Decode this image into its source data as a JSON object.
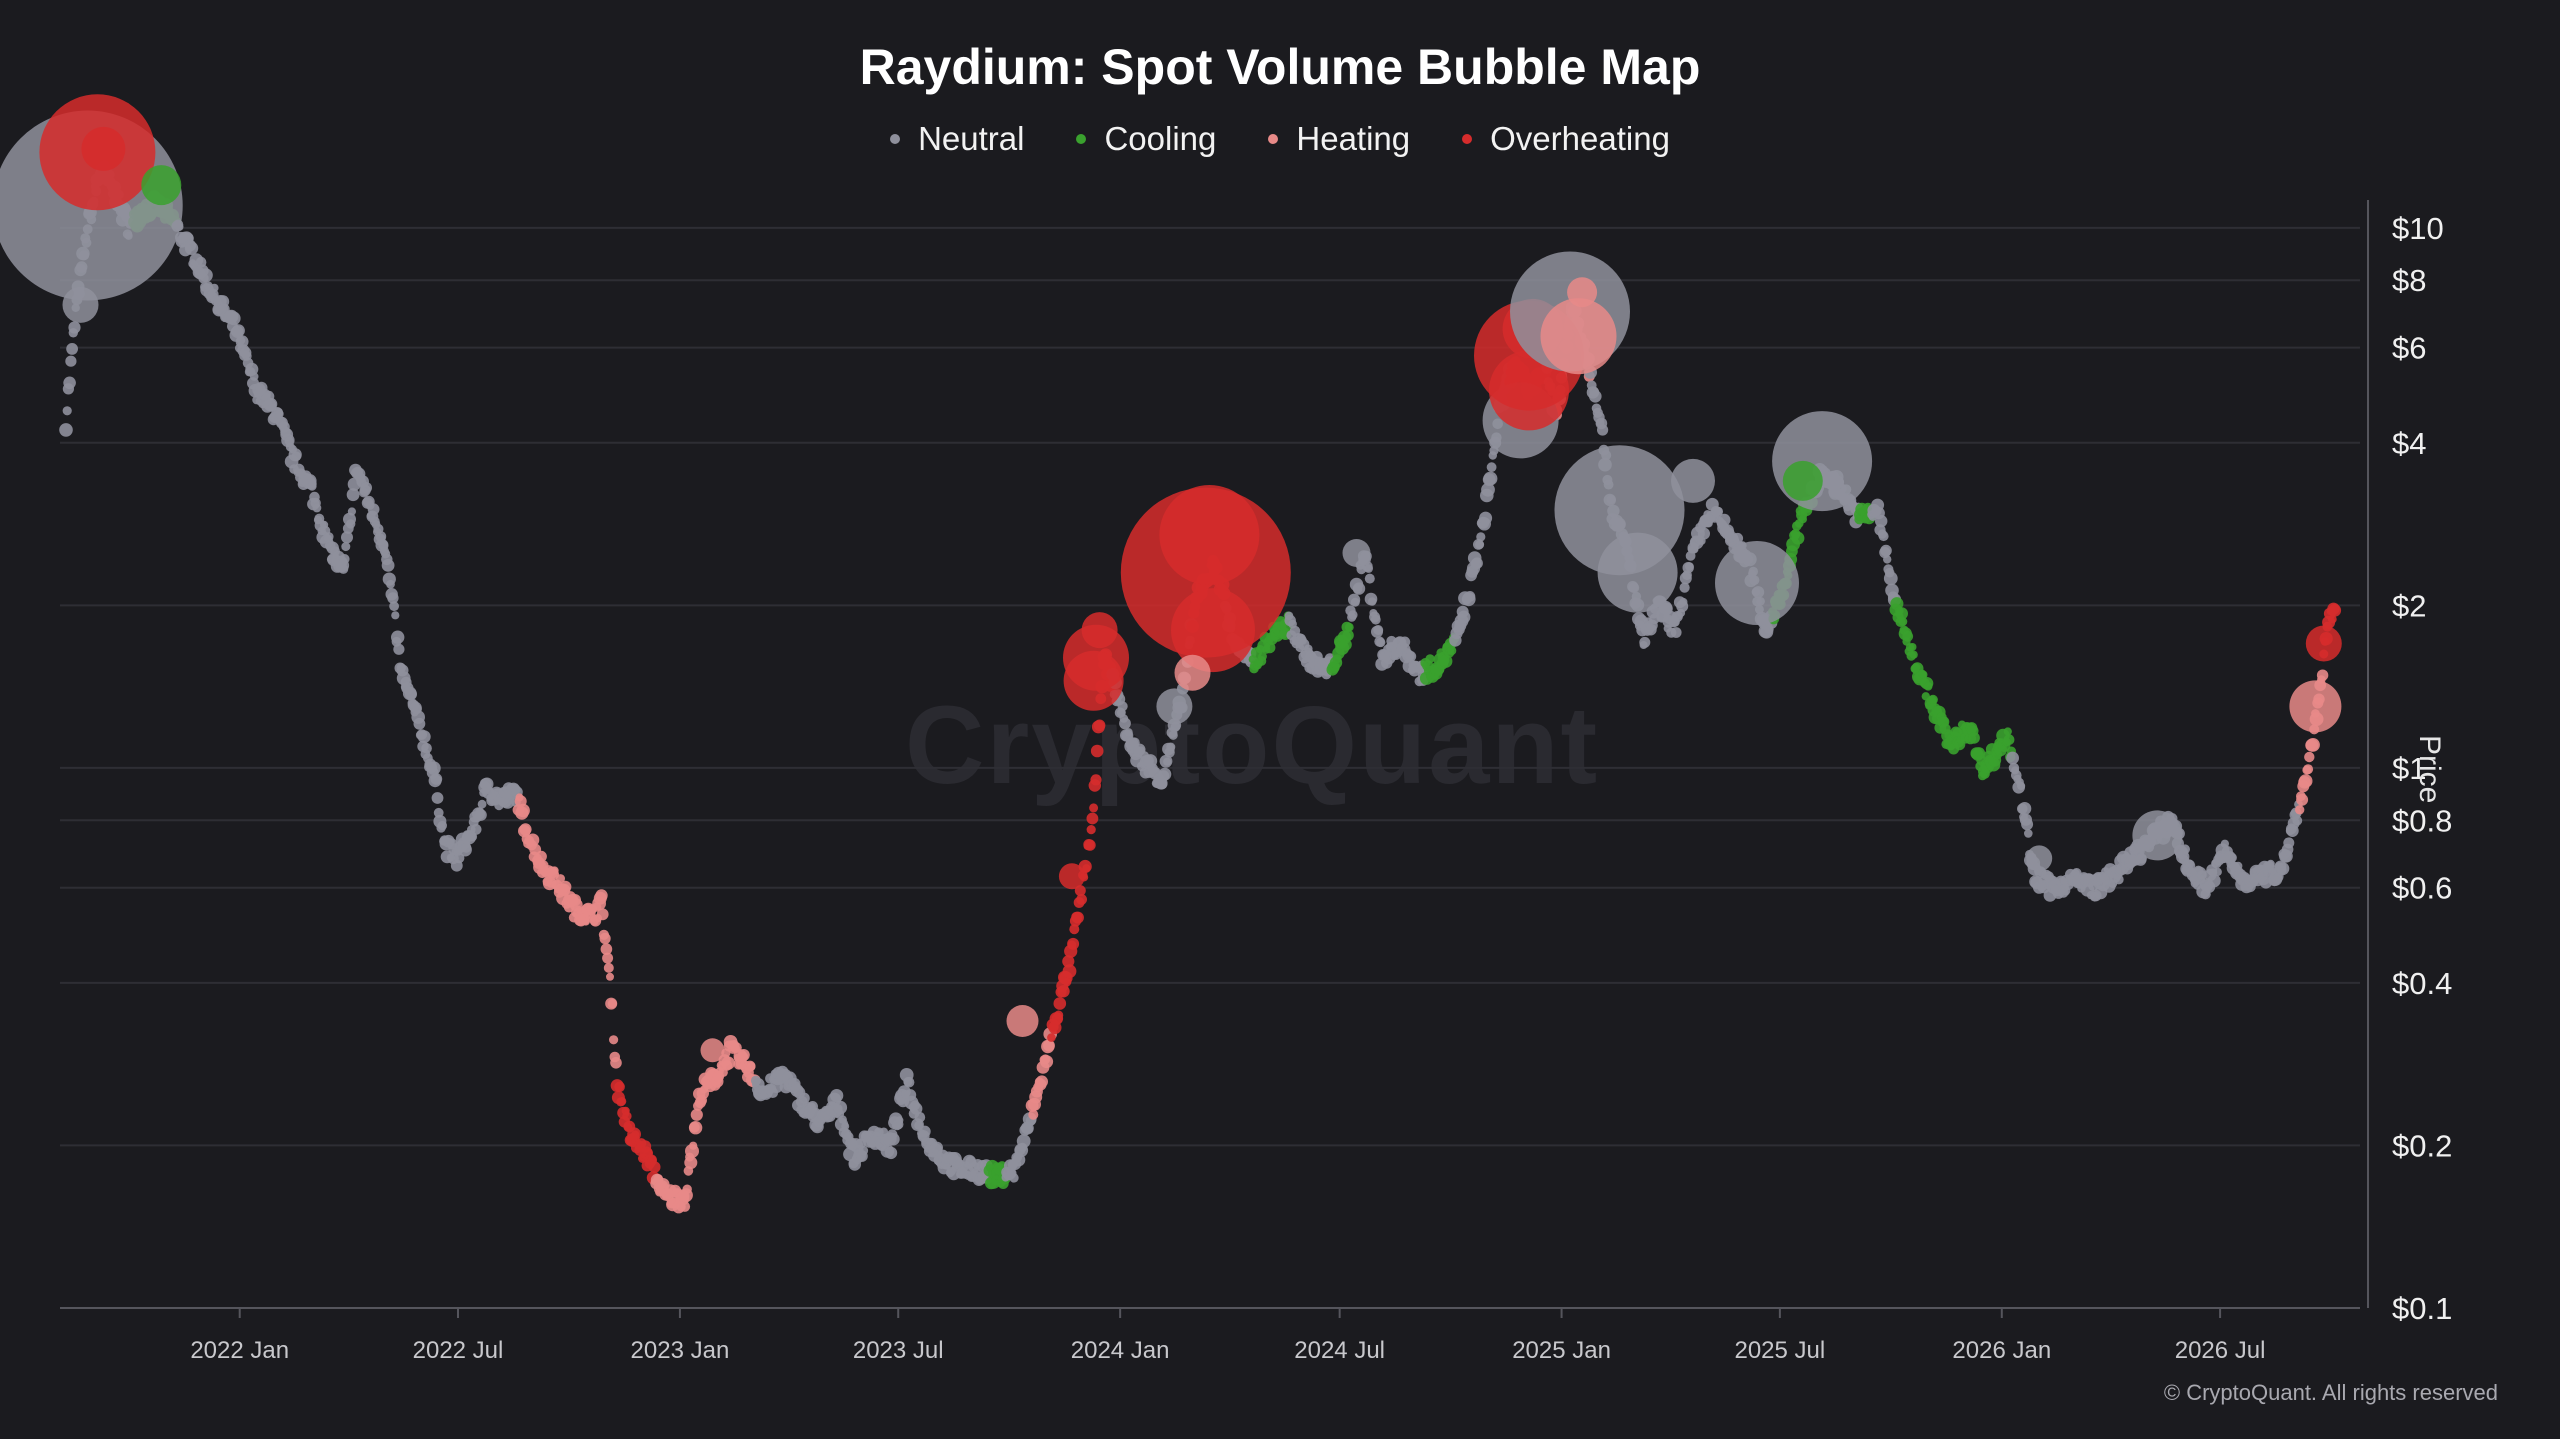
{
  "chart_data": {
    "type": "scatter",
    "title": "Raydium: Spot Volume Bubble Map",
    "ylabel": "Price",
    "xlabel": "",
    "yscale": "log",
    "ylim": [
      0.1,
      18
    ],
    "xlim": [
      "2021-08-05",
      "2026-10-25"
    ],
    "legend_position": "top-center",
    "legend": [
      {
        "name": "Neutral",
        "color": "#8f909c"
      },
      {
        "name": "Cooling",
        "color": "#3aa12e"
      },
      {
        "name": "Heating",
        "color": "#e88a88"
      },
      {
        "name": "Overheating",
        "color": "#d62c2c"
      }
    ],
    "x_ticks": [
      {
        "label": "2022 Jan",
        "date": "2022-01-01"
      },
      {
        "label": "2022 Jul",
        "date": "2022-07-01"
      },
      {
        "label": "2023 Jan",
        "date": "2023-01-01"
      },
      {
        "label": "2023 Jul",
        "date": "2023-07-01"
      },
      {
        "label": "2024 Jan",
        "date": "2024-01-01"
      },
      {
        "label": "2024 Jul",
        "date": "2024-07-01"
      },
      {
        "label": "2025 Jan",
        "date": "2025-01-01"
      },
      {
        "label": "2025 Jul",
        "date": "2025-07-01"
      },
      {
        "label": "2026 Jan",
        "date": "2026-01-01"
      },
      {
        "label": "2026 Jul",
        "date": "2026-07-01"
      }
    ],
    "y_ticks": [
      {
        "label": "$10",
        "value": 10
      },
      {
        "label": "$8",
        "value": 8
      },
      {
        "label": "$6",
        "value": 6
      },
      {
        "label": "$4",
        "value": 4
      },
      {
        "label": "$2",
        "value": 2
      },
      {
        "label": "$1",
        "value": 1
      },
      {
        "label": "$0.8",
        "value": 0.8
      },
      {
        "label": "$0.6",
        "value": 0.6
      },
      {
        "label": "$0.4",
        "value": 0.4
      },
      {
        "label": "$0.2",
        "value": 0.2
      },
      {
        "label": "$0.1",
        "value": 0.1
      }
    ],
    "price_path": [
      [
        "2021-08-10",
        4.4
      ],
      [
        "2021-08-18",
        7.0
      ],
      [
        "2021-08-28",
        10.0
      ],
      [
        "2021-09-08",
        13.0
      ],
      [
        "2021-09-20",
        11.5
      ],
      [
        "2021-10-01",
        10.0
      ],
      [
        "2021-10-12",
        10.8
      ],
      [
        "2021-10-25",
        11.0
      ],
      [
        "2021-11-08",
        10.2
      ],
      [
        "2021-11-22",
        9.0
      ],
      [
        "2021-12-10",
        7.5
      ],
      [
        "2021-12-28",
        6.5
      ],
      [
        "2022-01-15",
        5.0
      ],
      [
        "2022-02-01",
        4.5
      ],
      [
        "2022-02-15",
        3.7
      ],
      [
        "2022-03-01",
        3.3
      ],
      [
        "2022-03-15",
        2.6
      ],
      [
        "2022-03-28",
        2.3
      ],
      [
        "2022-04-08",
        3.6
      ],
      [
        "2022-04-20",
        3.0
      ],
      [
        "2022-05-01",
        2.6
      ],
      [
        "2022-05-08",
        2.0
      ],
      [
        "2022-05-15",
        1.5
      ],
      [
        "2022-05-30",
        1.2
      ],
      [
        "2022-06-12",
        0.95
      ],
      [
        "2022-06-20",
        0.72
      ],
      [
        "2022-06-30",
        0.68
      ],
      [
        "2022-07-15",
        0.78
      ],
      [
        "2022-07-25",
        0.92
      ],
      [
        "2022-08-05",
        0.87
      ],
      [
        "2022-08-18",
        0.9
      ],
      [
        "2022-08-28",
        0.75
      ],
      [
        "2022-09-10",
        0.65
      ],
      [
        "2022-09-20",
        0.62
      ],
      [
        "2022-10-05",
        0.55
      ],
      [
        "2022-10-20",
        0.53
      ],
      [
        "2022-10-28",
        0.56
      ],
      [
        "2022-11-05",
        0.38
      ],
      [
        "2022-11-10",
        0.26
      ],
      [
        "2022-11-20",
        0.21
      ],
      [
        "2022-12-05",
        0.19
      ],
      [
        "2022-12-20",
        0.16
      ],
      [
        "2023-01-05",
        0.16
      ],
      [
        "2023-01-18",
        0.25
      ],
      [
        "2023-02-01",
        0.27
      ],
      [
        "2023-02-12",
        0.3
      ],
      [
        "2023-02-25",
        0.28
      ],
      [
        "2023-03-12",
        0.25
      ],
      [
        "2023-03-28",
        0.27
      ],
      [
        "2023-04-12",
        0.24
      ],
      [
        "2023-04-28",
        0.22
      ],
      [
        "2023-05-12",
        0.24
      ],
      [
        "2023-05-25",
        0.19
      ],
      [
        "2023-06-10",
        0.21
      ],
      [
        "2023-06-25",
        0.2
      ],
      [
        "2023-07-08",
        0.26
      ],
      [
        "2023-07-22",
        0.21
      ],
      [
        "2023-08-05",
        0.19
      ],
      [
        "2023-08-20",
        0.18
      ],
      [
        "2023-09-05",
        0.18
      ],
      [
        "2023-09-20",
        0.175
      ],
      [
        "2023-10-05",
        0.18
      ],
      [
        "2023-10-18",
        0.22
      ],
      [
        "2023-10-28",
        0.27
      ],
      [
        "2023-11-08",
        0.34
      ],
      [
        "2023-11-20",
        0.43
      ],
      [
        "2023-12-02",
        0.63
      ],
      [
        "2023-12-10",
        0.82
      ],
      [
        "2023-12-18",
        1.6
      ],
      [
        "2023-12-28",
        1.4
      ],
      [
        "2024-01-10",
        1.1
      ],
      [
        "2024-01-22",
        1.02
      ],
      [
        "2024-02-05",
        0.95
      ],
      [
        "2024-02-20",
        1.3
      ],
      [
        "2024-03-05",
        2.1
      ],
      [
        "2024-03-20",
        2.4
      ],
      [
        "2024-04-05",
        1.7
      ],
      [
        "2024-04-20",
        1.55
      ],
      [
        "2024-05-05",
        1.75
      ],
      [
        "2024-05-20",
        1.85
      ],
      [
        "2024-06-05",
        1.6
      ],
      [
        "2024-06-20",
        1.5
      ],
      [
        "2024-07-05",
        1.7
      ],
      [
        "2024-07-22",
        2.5
      ],
      [
        "2024-08-05",
        1.6
      ],
      [
        "2024-08-20",
        1.7
      ],
      [
        "2024-09-05",
        1.5
      ],
      [
        "2024-09-20",
        1.55
      ],
      [
        "2024-10-05",
        1.7
      ],
      [
        "2024-10-18",
        2.2
      ],
      [
        "2024-10-28",
        2.8
      ],
      [
        "2024-11-10",
        4.5
      ],
      [
        "2024-11-22",
        5.6
      ],
      [
        "2024-12-05",
        5.0
      ],
      [
        "2024-12-18",
        5.5
      ],
      [
        "2024-12-28",
        4.5
      ],
      [
        "2025-01-10",
        7.2
      ],
      [
        "2025-01-20",
        6.0
      ],
      [
        "2025-02-01",
        4.6
      ],
      [
        "2025-02-12",
        3.0
      ],
      [
        "2025-02-25",
        2.5
      ],
      [
        "2025-03-10",
        1.7
      ],
      [
        "2025-03-22",
        2.0
      ],
      [
        "2025-04-05",
        1.8
      ],
      [
        "2025-04-20",
        2.5
      ],
      [
        "2025-05-05",
        3.0
      ],
      [
        "2025-05-20",
        2.7
      ],
      [
        "2025-06-05",
        2.4
      ],
      [
        "2025-06-20",
        1.8
      ],
      [
        "2025-07-05",
        2.2
      ],
      [
        "2025-07-20",
        3.0
      ],
      [
        "2025-08-05",
        3.5
      ],
      [
        "2025-08-20",
        3.3
      ],
      [
        "2025-09-05",
        2.9
      ],
      [
        "2025-09-20",
        3.0
      ],
      [
        "2025-10-05",
        2.0
      ],
      [
        "2025-10-20",
        1.6
      ],
      [
        "2025-11-05",
        1.3
      ],
      [
        "2025-11-20",
        1.1
      ],
      [
        "2025-12-05",
        1.2
      ],
      [
        "2025-12-15",
        1.0
      ],
      [
        "2025-12-25",
        1.05
      ],
      [
        "2026-01-05",
        1.15
      ],
      [
        "2026-01-15",
        0.95
      ],
      [
        "2026-01-28",
        0.63
      ],
      [
        "2026-02-12",
        0.6
      ],
      [
        "2026-03-01",
        0.62
      ],
      [
        "2026-03-20",
        0.6
      ],
      [
        "2026-04-10",
        0.65
      ],
      [
        "2026-05-01",
        0.72
      ],
      [
        "2026-05-22",
        0.8
      ],
      [
        "2026-06-05",
        0.65
      ],
      [
        "2026-06-20",
        0.6
      ],
      [
        "2026-07-05",
        0.7
      ],
      [
        "2026-07-20",
        0.62
      ],
      [
        "2026-08-05",
        0.63
      ],
      [
        "2026-08-20",
        0.65
      ],
      [
        "2026-09-01",
        0.8
      ],
      [
        "2026-09-10",
        0.95
      ],
      [
        "2026-09-20",
        1.3
      ],
      [
        "2026-09-28",
        1.8
      ],
      [
        "2026-10-05",
        2.0
      ]
    ],
    "regimes": [
      [
        "2021-08-10",
        "Neutral"
      ],
      [
        "2021-10-05",
        "Cooling"
      ],
      [
        "2021-11-10",
        "Neutral"
      ],
      [
        "2022-08-20",
        "Heating"
      ],
      [
        "2022-11-10",
        "Overheating"
      ],
      [
        "2022-12-12",
        "Heating"
      ],
      [
        "2023-01-15",
        "Heating"
      ],
      [
        "2023-03-05",
        "Neutral"
      ],
      [
        "2023-09-15",
        "Cooling"
      ],
      [
        "2023-09-28",
        "Neutral"
      ],
      [
        "2023-10-20",
        "Heating"
      ],
      [
        "2023-11-05",
        "Overheating"
      ],
      [
        "2023-12-25",
        "Neutral"
      ],
      [
        "2024-03-01",
        "Overheating"
      ],
      [
        "2024-03-28",
        "Neutral"
      ],
      [
        "2024-04-20",
        "Cooling"
      ],
      [
        "2024-05-20",
        "Neutral"
      ],
      [
        "2024-06-25",
        "Cooling"
      ],
      [
        "2024-07-10",
        "Neutral"
      ],
      [
        "2024-09-10",
        "Cooling"
      ],
      [
        "2024-10-05",
        "Neutral"
      ],
      [
        "2024-11-20",
        "Overheating"
      ],
      [
        "2024-12-20",
        "Heating"
      ],
      [
        "2025-01-05",
        "Neutral"
      ],
      [
        "2025-01-12",
        "Heating"
      ],
      [
        "2025-01-25",
        "Neutral"
      ],
      [
        "2025-06-25",
        "Cooling"
      ],
      [
        "2025-07-28",
        "Neutral"
      ],
      [
        "2025-09-05",
        "Cooling"
      ],
      [
        "2025-09-15",
        "Neutral"
      ],
      [
        "2025-10-05",
        "Cooling"
      ],
      [
        "2026-01-10",
        "Neutral"
      ],
      [
        "2026-09-05",
        "Heating"
      ],
      [
        "2026-09-25",
        "Overheating"
      ]
    ],
    "bubbles": [
      {
        "date": "2021-08-28",
        "price": 11.0,
        "size": 95,
        "regime": "Neutral"
      },
      {
        "date": "2021-09-05",
        "price": 13.8,
        "size": 58,
        "regime": "Overheating"
      },
      {
        "date": "2021-09-10",
        "price": 14.0,
        "size": 22,
        "regime": "Overheating"
      },
      {
        "date": "2021-08-22",
        "price": 7.2,
        "size": 18,
        "regime": "Neutral"
      },
      {
        "date": "2021-10-28",
        "price": 12.0,
        "size": 20,
        "regime": "Cooling"
      },
      {
        "date": "2023-01-28",
        "price": 0.3,
        "size": 12,
        "regime": "Heating"
      },
      {
        "date": "2023-10-12",
        "price": 0.34,
        "size": 16,
        "regime": "Heating"
      },
      {
        "date": "2023-11-22",
        "price": 0.63,
        "size": 13,
        "regime": "Overheating"
      },
      {
        "date": "2023-12-12",
        "price": 1.6,
        "size": 33,
        "regime": "Overheating"
      },
      {
        "date": "2023-12-10",
        "price": 1.45,
        "size": 30,
        "regime": "Overheating"
      },
      {
        "date": "2023-12-15",
        "price": 1.8,
        "size": 18,
        "regime": "Overheating"
      },
      {
        "date": "2024-03-12",
        "price": 2.3,
        "size": 85,
        "regime": "Overheating"
      },
      {
        "date": "2024-03-15",
        "price": 2.7,
        "size": 50,
        "regime": "Overheating"
      },
      {
        "date": "2024-03-18",
        "price": 1.8,
        "size": 42,
        "regime": "Overheating"
      },
      {
        "date": "2024-03-01",
        "price": 1.5,
        "size": 18,
        "regime": "Heating"
      },
      {
        "date": "2024-02-15",
        "price": 1.3,
        "size": 18,
        "regime": "Neutral"
      },
      {
        "date": "2024-07-15",
        "price": 2.5,
        "size": 14,
        "regime": "Neutral"
      },
      {
        "date": "2024-11-28",
        "price": 4.4,
        "size": 38,
        "regime": "Neutral"
      },
      {
        "date": "2024-12-05",
        "price": 5.8,
        "size": 55,
        "regime": "Overheating"
      },
      {
        "date": "2024-12-05",
        "price": 5.0,
        "size": 40,
        "regime": "Overheating"
      },
      {
        "date": "2024-12-08",
        "price": 6.5,
        "size": 30,
        "regime": "Overheating"
      },
      {
        "date": "2025-01-08",
        "price": 7.0,
        "size": 60,
        "regime": "Neutral"
      },
      {
        "date": "2025-01-15",
        "price": 6.3,
        "size": 38,
        "regime": "Heating"
      },
      {
        "date": "2025-01-18",
        "price": 7.6,
        "size": 15,
        "regime": "Heating"
      },
      {
        "date": "2025-02-18",
        "price": 3.0,
        "size": 65,
        "regime": "Neutral"
      },
      {
        "date": "2025-03-05",
        "price": 2.3,
        "size": 40,
        "regime": "Neutral"
      },
      {
        "date": "2025-04-20",
        "price": 3.4,
        "size": 22,
        "regime": "Neutral"
      },
      {
        "date": "2025-06-12",
        "price": 2.2,
        "size": 42,
        "regime": "Neutral"
      },
      {
        "date": "2025-08-05",
        "price": 3.7,
        "size": 50,
        "regime": "Neutral"
      },
      {
        "date": "2025-07-20",
        "price": 3.4,
        "size": 20,
        "regime": "Cooling"
      },
      {
        "date": "2026-02-01",
        "price": 0.68,
        "size": 13,
        "regime": "Neutral"
      },
      {
        "date": "2026-05-10",
        "price": 0.75,
        "size": 25,
        "regime": "Neutral"
      },
      {
        "date": "2026-09-18",
        "price": 1.3,
        "size": 26,
        "regime": "Heating"
      },
      {
        "date": "2026-09-25",
        "price": 1.7,
        "size": 18,
        "regime": "Overheating"
      }
    ]
  },
  "credit": "© CryptoQuant. All rights reserved",
  "watermark": "CryptoQuant"
}
